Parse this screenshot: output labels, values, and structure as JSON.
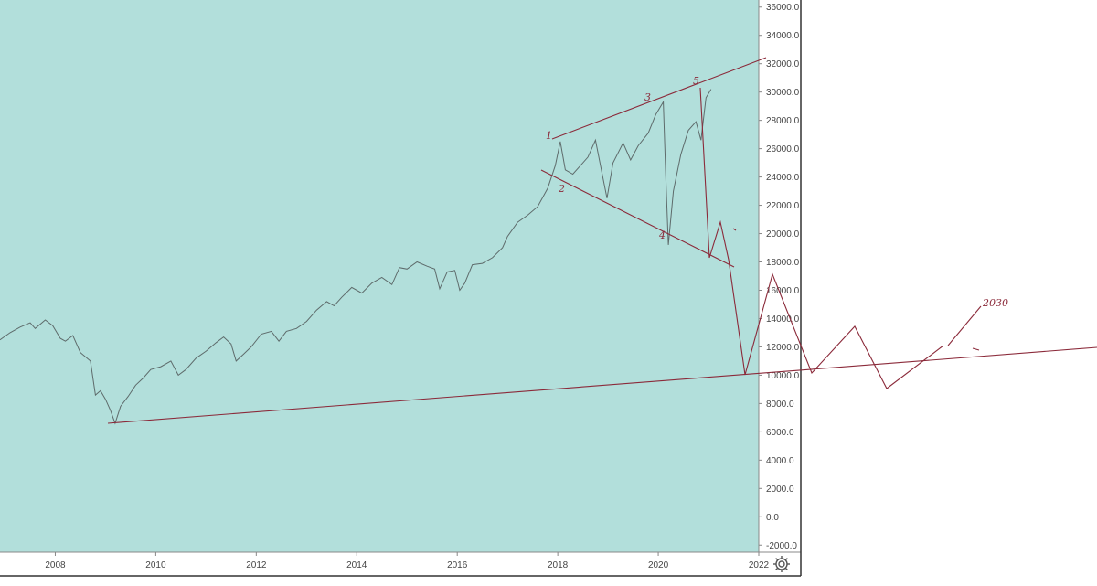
{
  "chart_data": {
    "type": "line",
    "title": "",
    "xlabel": "",
    "ylabel": "",
    "x_axis_years": [
      "2008",
      "2010",
      "2012",
      "2014",
      "2016",
      "2018",
      "2020",
      "2022"
    ],
    "y_axis_labels": [
      "36000.0",
      "34000.0",
      "32000.0",
      "30000.0",
      "28000.0",
      "26000.0",
      "24000.0",
      "22000.0",
      "20000.0",
      "18000.0",
      "16000.0",
      "14000.0",
      "12000.0",
      "10000.0",
      "8000.0",
      "6000.0",
      "4000.0",
      "2000.0",
      "0.0",
      "-2000.0"
    ],
    "xlim": [
      2006.9,
      2022.0
    ],
    "ylim": [
      -2500,
      36500
    ],
    "series": [
      {
        "points": [
          [
            2006.9,
            12500
          ],
          [
            2007.1,
            13000
          ],
          [
            2007.3,
            13400
          ],
          [
            2007.5,
            13700
          ],
          [
            2007.6,
            13300
          ],
          [
            2007.8,
            13900
          ],
          [
            2007.95,
            13500
          ],
          [
            2008.1,
            12600
          ],
          [
            2008.2,
            12400
          ],
          [
            2008.35,
            12800
          ],
          [
            2008.5,
            11600
          ],
          [
            2008.6,
            11300
          ],
          [
            2008.7,
            11000
          ],
          [
            2008.8,
            8600
          ],
          [
            2008.9,
            8900
          ],
          [
            2009.0,
            8300
          ],
          [
            2009.1,
            7500
          ],
          [
            2009.19,
            6600
          ],
          [
            2009.3,
            7800
          ],
          [
            2009.45,
            8500
          ],
          [
            2009.6,
            9300
          ],
          [
            2009.75,
            9800
          ],
          [
            2009.9,
            10400
          ],
          [
            2010.1,
            10600
          ],
          [
            2010.3,
            11000
          ],
          [
            2010.45,
            10000
          ],
          [
            2010.6,
            10400
          ],
          [
            2010.8,
            11200
          ],
          [
            2011.0,
            11700
          ],
          [
            2011.2,
            12300
          ],
          [
            2011.35,
            12700
          ],
          [
            2011.5,
            12200
          ],
          [
            2011.6,
            11000
          ],
          [
            2011.75,
            11500
          ],
          [
            2011.9,
            12000
          ],
          [
            2012.1,
            12900
          ],
          [
            2012.3,
            13100
          ],
          [
            2012.45,
            12400
          ],
          [
            2012.6,
            13100
          ],
          [
            2012.8,
            13300
          ],
          [
            2013.0,
            13800
          ],
          [
            2013.2,
            14600
          ],
          [
            2013.4,
            15200
          ],
          [
            2013.55,
            14900
          ],
          [
            2013.7,
            15500
          ],
          [
            2013.9,
            16200
          ],
          [
            2014.1,
            15800
          ],
          [
            2014.3,
            16500
          ],
          [
            2014.5,
            16900
          ],
          [
            2014.7,
            16400
          ],
          [
            2014.85,
            17600
          ],
          [
            2015.0,
            17500
          ],
          [
            2015.2,
            18000
          ],
          [
            2015.4,
            17700
          ],
          [
            2015.55,
            17500
          ],
          [
            2015.65,
            16100
          ],
          [
            2015.8,
            17300
          ],
          [
            2015.95,
            17400
          ],
          [
            2016.05,
            16000
          ],
          [
            2016.15,
            16500
          ],
          [
            2016.3,
            17800
          ],
          [
            2016.5,
            17900
          ],
          [
            2016.7,
            18300
          ],
          [
            2016.9,
            19000
          ],
          [
            2017.0,
            19800
          ],
          [
            2017.2,
            20800
          ],
          [
            2017.4,
            21300
          ],
          [
            2017.6,
            21900
          ],
          [
            2017.8,
            23200
          ],
          [
            2017.95,
            24800
          ],
          [
            2018.05,
            26500
          ],
          [
            2018.15,
            24500
          ],
          [
            2018.3,
            24200
          ],
          [
            2018.45,
            24800
          ],
          [
            2018.6,
            25400
          ],
          [
            2018.75,
            26600
          ],
          [
            2018.85,
            24800
          ],
          [
            2018.98,
            22500
          ],
          [
            2019.1,
            25000
          ],
          [
            2019.3,
            26400
          ],
          [
            2019.45,
            25200
          ],
          [
            2019.6,
            26200
          ],
          [
            2019.8,
            27100
          ],
          [
            2019.95,
            28400
          ],
          [
            2020.1,
            29300
          ],
          [
            2020.15,
            24000
          ],
          [
            2020.2,
            19200
          ],
          [
            2020.3,
            23000
          ],
          [
            2020.45,
            25600
          ],
          [
            2020.6,
            27300
          ],
          [
            2020.75,
            27900
          ],
          [
            2020.85,
            26600
          ],
          [
            2020.95,
            29600
          ],
          [
            2021.05,
            30200
          ]
        ]
      }
    ],
    "grid": false,
    "legend": "none",
    "annotations": [
      {
        "text": "1"
      },
      {
        "text": "2"
      },
      {
        "text": "3"
      },
      {
        "text": "4"
      },
      {
        "text": "5"
      },
      {
        "text": "2030"
      }
    ],
    "colors": {
      "plot_background": "#b2dfdb",
      "price_line": "#5e6b6b",
      "drawing": "#8b2a3a",
      "axis_text": "#444444",
      "panel_border": "#333333"
    }
  },
  "toolbar": {
    "settings_icon": "gear-icon"
  }
}
